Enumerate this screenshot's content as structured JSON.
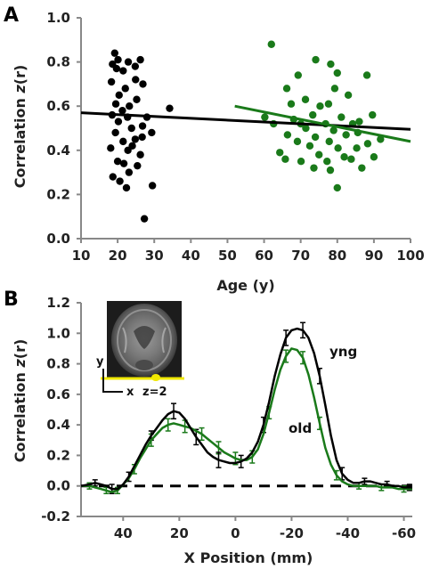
{
  "chart_data": [
    {
      "type": "scatter",
      "panel_label": "A",
      "xlabel": "Age (y)",
      "ylabel_prefix": "Correlation ",
      "ylabel_italic": "z",
      "ylabel_suffix": "(r)",
      "xlim": [
        10,
        100
      ],
      "ylim": [
        0.0,
        1.0
      ],
      "xticks": [
        10,
        20,
        30,
        40,
        50,
        60,
        70,
        80,
        90,
        100
      ],
      "yticks": [
        0.0,
        0.2,
        0.4,
        0.6,
        0.8,
        1.0
      ],
      "ytick_labels": [
        "0.0",
        "0.2",
        "0.4",
        "0.6",
        "0.8",
        "1.0"
      ],
      "series": [
        {
          "color": "#000000",
          "points": [
            [
              19.2,
              0.84
            ],
            [
              20.1,
              0.81
            ],
            [
              18.6,
              0.79
            ],
            [
              19.7,
              0.77
            ],
            [
              22.9,
              0.8
            ],
            [
              26.2,
              0.81
            ],
            [
              21.5,
              0.76
            ],
            [
              24.8,
              0.78
            ],
            [
              18.3,
              0.71
            ],
            [
              22.1,
              0.68
            ],
            [
              24.9,
              0.72
            ],
            [
              20.4,
              0.65
            ],
            [
              26.9,
              0.7
            ],
            [
              19.5,
              0.61
            ],
            [
              23.2,
              0.6
            ],
            [
              21.3,
              0.58
            ],
            [
              25.2,
              0.63
            ],
            [
              18.5,
              0.56
            ],
            [
              20.2,
              0.53
            ],
            [
              22.7,
              0.55
            ],
            [
              26.8,
              0.51
            ],
            [
              23.8,
              0.5
            ],
            [
              19.4,
              0.48
            ],
            [
              21.5,
              0.44
            ],
            [
              24.8,
              0.45
            ],
            [
              18.1,
              0.41
            ],
            [
              22.8,
              0.4
            ],
            [
              26.2,
              0.38
            ],
            [
              20.0,
              0.35
            ],
            [
              21.7,
              0.34
            ],
            [
              25.4,
              0.33
            ],
            [
              18.7,
              0.28
            ],
            [
              23.1,
              0.3
            ],
            [
              20.6,
              0.26
            ],
            [
              22.4,
              0.23
            ],
            [
              29.5,
              0.24
            ],
            [
              27.3,
              0.09
            ],
            [
              26.7,
              0.46
            ],
            [
              29.3,
              0.48
            ],
            [
              34.2,
              0.59
            ],
            [
              28.0,
              0.55
            ],
            [
              24.0,
              0.42
            ]
          ]
        },
        {
          "color": "#1a7a1a",
          "points": [
            [
              62.0,
              0.88
            ],
            [
              74.1,
              0.81
            ],
            [
              78.2,
              0.79
            ],
            [
              80.0,
              0.75
            ],
            [
              69.3,
              0.74
            ],
            [
              88.1,
              0.74
            ],
            [
              66.2,
              0.68
            ],
            [
              79.3,
              0.68
            ],
            [
              83.0,
              0.65
            ],
            [
              71.3,
              0.63
            ],
            [
              77.6,
              0.61
            ],
            [
              75.3,
              0.6
            ],
            [
              60.2,
              0.55
            ],
            [
              68.1,
              0.54
            ],
            [
              73.3,
              0.56
            ],
            [
              81.1,
              0.55
            ],
            [
              86.0,
              0.53
            ],
            [
              89.6,
              0.56
            ],
            [
              62.6,
              0.52
            ],
            [
              70.0,
              0.52
            ],
            [
              76.8,
              0.52
            ],
            [
              84.2,
              0.52
            ],
            [
              71.4,
              0.5
            ],
            [
              79.0,
              0.49
            ],
            [
              66.4,
              0.47
            ],
            [
              74.0,
              0.46
            ],
            [
              82.4,
              0.47
            ],
            [
              91.8,
              0.45
            ],
            [
              69.1,
              0.44
            ],
            [
              77.8,
              0.44
            ],
            [
              88.3,
              0.43
            ],
            [
              72.5,
              0.42
            ],
            [
              80.2,
              0.41
            ],
            [
              85.3,
              0.41
            ],
            [
              64.3,
              0.39
            ],
            [
              75.0,
              0.38
            ],
            [
              81.9,
              0.37
            ],
            [
              90.0,
              0.37
            ],
            [
              65.8,
              0.36
            ],
            [
              70.1,
              0.35
            ],
            [
              77.2,
              0.35
            ],
            [
              83.8,
              0.36
            ],
            [
              73.6,
              0.32
            ],
            [
              78.1,
              0.31
            ],
            [
              86.7,
              0.32
            ],
            [
              80.0,
              0.23
            ],
            [
              67.4,
              0.61
            ],
            [
              85.6,
              0.48
            ]
          ]
        }
      ],
      "regression_lines": [
        {
          "color": "#000000",
          "x": [
            10,
            100
          ],
          "y": [
            0.57,
            0.495
          ]
        },
        {
          "color": "#1a7a1a",
          "x": [
            52,
            100
          ],
          "y": [
            0.6,
            0.44
          ]
        }
      ]
    },
    {
      "type": "line",
      "panel_label": "B",
      "xlabel": "X Position (mm)",
      "ylabel_prefix": "Correlation ",
      "ylabel_italic": "z",
      "ylabel_suffix": "(r)",
      "xlim": [
        55,
        -63
      ],
      "ylim": [
        -0.2,
        1.2
      ],
      "xticks": [
        40,
        20,
        0,
        -20,
        -40,
        -60
      ],
      "xtick_labels": [
        "40",
        "20",
        "0",
        "-20",
        "-40",
        "-60"
      ],
      "yticks": [
        -0.2,
        0.0,
        0.2,
        0.4,
        0.6,
        0.8,
        1.0,
        1.2
      ],
      "ytick_labels": [
        "-0.2",
        "0.0",
        "0.2",
        "0.4",
        "0.6",
        "0.8",
        "1.0",
        "1.2"
      ],
      "zero_line": 0.0,
      "annotations": {
        "yng": "yng",
        "old": "old"
      },
      "series": [
        {
          "name": "yng",
          "color": "#000000",
          "x": [
            55,
            52,
            50,
            48,
            46,
            44,
            42,
            40,
            38,
            36,
            34,
            32,
            30,
            28,
            26,
            24,
            22,
            20,
            18,
            16,
            14,
            12,
            10,
            8,
            6,
            4,
            2,
            0,
            -2,
            -4,
            -6,
            -8,
            -10,
            -12,
            -14,
            -16,
            -18,
            -20,
            -22,
            -24,
            -26,
            -28,
            -30,
            -32,
            -34,
            -36,
            -38,
            -40,
            -42,
            -44,
            -46,
            -48,
            -50,
            -52,
            -54,
            -56,
            -58,
            -60,
            -62,
            -63
          ],
          "y": [
            0.0,
            0.01,
            0.02,
            0.01,
            0.0,
            -0.02,
            -0.02,
            0.01,
            0.06,
            0.13,
            0.2,
            0.27,
            0.33,
            0.38,
            0.43,
            0.47,
            0.49,
            0.48,
            0.44,
            0.38,
            0.32,
            0.27,
            0.22,
            0.19,
            0.17,
            0.16,
            0.15,
            0.15,
            0.16,
            0.18,
            0.22,
            0.29,
            0.4,
            0.55,
            0.72,
            0.86,
            0.97,
            1.02,
            1.03,
            1.02,
            0.97,
            0.87,
            0.72,
            0.53,
            0.33,
            0.17,
            0.08,
            0.04,
            0.02,
            0.02,
            0.03,
            0.03,
            0.02,
            0.01,
            0.01,
            0.0,
            0.0,
            -0.01,
            -0.01,
            -0.01
          ],
          "error_x": [
            50,
            44,
            38,
            30,
            22,
            14,
            6,
            -2,
            -10,
            -18,
            -24,
            -30,
            -38,
            -46,
            -54,
            -62
          ],
          "error_y": [
            0.02,
            0.03,
            0.03,
            0.03,
            0.05,
            0.05,
            0.05,
            0.04,
            0.05,
            0.05,
            0.05,
            0.05,
            0.04,
            0.02,
            0.02,
            0.02
          ]
        },
        {
          "name": "old",
          "color": "#1a7a1a",
          "x": [
            55,
            52,
            50,
            48,
            46,
            44,
            42,
            40,
            38,
            36,
            34,
            32,
            30,
            28,
            26,
            24,
            22,
            20,
            18,
            16,
            14,
            12,
            10,
            8,
            6,
            4,
            2,
            0,
            -2,
            -4,
            -6,
            -8,
            -10,
            -12,
            -14,
            -16,
            -18,
            -20,
            -22,
            -24,
            -26,
            -28,
            -30,
            -32,
            -34,
            -36,
            -38,
            -40,
            -42,
            -44,
            -46,
            -48,
            -50,
            -52,
            -54,
            -56,
            -58,
            -60,
            -62,
            -63
          ],
          "y": [
            0.0,
            0.0,
            -0.01,
            -0.02,
            -0.03,
            -0.04,
            -0.03,
            0.01,
            0.05,
            0.11,
            0.18,
            0.24,
            0.3,
            0.34,
            0.38,
            0.4,
            0.41,
            0.4,
            0.39,
            0.38,
            0.36,
            0.34,
            0.31,
            0.28,
            0.25,
            0.22,
            0.2,
            0.18,
            0.17,
            0.17,
            0.19,
            0.24,
            0.34,
            0.48,
            0.63,
            0.76,
            0.85,
            0.9,
            0.89,
            0.84,
            0.73,
            0.58,
            0.41,
            0.25,
            0.14,
            0.07,
            0.03,
            0.01,
            0.0,
            0.0,
            0.0,
            0.0,
            0.0,
            -0.01,
            -0.01,
            -0.01,
            -0.02,
            -0.02,
            -0.02,
            -0.02
          ],
          "error_x": [
            52,
            46,
            42,
            36,
            30,
            24,
            18,
            12,
            6,
            0,
            -6,
            -12,
            -18,
            -24,
            -30,
            -36,
            -44,
            -52,
            -60
          ],
          "error_y": [
            0.02,
            0.02,
            0.02,
            0.03,
            0.04,
            0.04,
            0.04,
            0.04,
            0.04,
            0.04,
            0.04,
            0.04,
            0.04,
            0.04,
            0.04,
            0.03,
            0.02,
            0.02,
            0.02
          ]
        }
      ],
      "inset": {
        "description_icon": "brain-axial-mri-icon",
        "axis_y": "y",
        "axis_x": "x",
        "slice_label": "z=2",
        "highlight_color": "#f0e800"
      }
    }
  ]
}
